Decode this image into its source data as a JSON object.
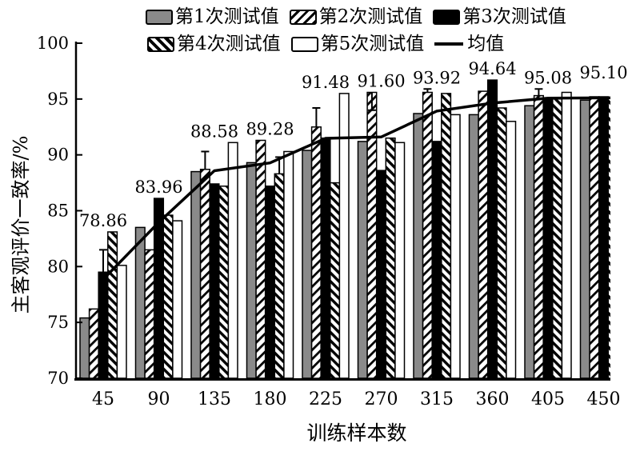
{
  "figure": {
    "legend": {
      "items": [
        {
          "label": "第1次测试值",
          "swatch": "gray"
        },
        {
          "label": "第2次测试值",
          "swatch": "hatch-fwd"
        },
        {
          "label": "第3次测试值",
          "swatch": "black"
        },
        {
          "label": "第4次测试值",
          "swatch": "hatch-bwd"
        },
        {
          "label": "第5次测试值",
          "swatch": "white"
        },
        {
          "label": "均值",
          "swatch": "line"
        }
      ]
    },
    "axes": {
      "x_label": "训练样本数",
      "y_label": "主客观评价一致率/%"
    }
  },
  "chart_data": {
    "type": "bar",
    "title": "",
    "xlabel": "训练样本数",
    "ylabel": "主客观评价一致率/%",
    "ylim": [
      70,
      100
    ],
    "yticks": [
      70,
      75,
      80,
      85,
      90,
      95,
      100
    ],
    "grid": false,
    "legend_position": "top",
    "categories": [
      45,
      90,
      135,
      180,
      225,
      270,
      315,
      360,
      405,
      450
    ],
    "series": [
      {
        "name": "第1次测试值",
        "style": "solid-gray",
        "values": [
          75.4,
          83.5,
          88.5,
          89.3,
          90.4,
          91.2,
          93.7,
          93.6,
          94.4,
          94.9
        ]
      },
      {
        "name": "第2次测试值",
        "style": "hatch-forward",
        "values": [
          76.2,
          81.5,
          88.7,
          91.3,
          92.5,
          95.6,
          95.6,
          95.7,
          95.3,
          95.2
        ]
      },
      {
        "name": "第3次测试值",
        "style": "solid-black",
        "values": [
          79.5,
          86.1,
          87.4,
          87.2,
          91.5,
          88.6,
          91.2,
          96.7,
          95.1,
          95.2
        ]
      },
      {
        "name": "第4次测试值",
        "style": "hatch-backward",
        "values": [
          83.1,
          84.6,
          87.2,
          88.3,
          87.5,
          91.5,
          95.5,
          94.2,
          95.0,
          95.1
        ]
      },
      {
        "name": "第5次测试值",
        "style": "white-outline",
        "values": [
          80.1,
          84.1,
          91.1,
          90.3,
          95.5,
          91.1,
          93.6,
          93.0,
          95.6,
          95.1
        ]
      }
    ],
    "mean_line": {
      "name": "均值",
      "values": [
        78.86,
        83.96,
        88.58,
        89.28,
        91.48,
        91.6,
        93.92,
        94.64,
        95.08,
        95.1
      ]
    },
    "value_labels": [
      "78.86",
      "83.96",
      "88.58",
      "89.28",
      "91.48",
      "91.60",
      "93.92",
      "94.64",
      "95.08",
      "95.10"
    ],
    "error_bars": [
      {
        "group_index": 0,
        "series_index": 2,
        "whisker_value": 81.5
      },
      {
        "group_index": 2,
        "series_index": 1,
        "whisker_value": 90.3
      },
      {
        "group_index": 3,
        "series_index": 3,
        "whisker_value": 89.8
      },
      {
        "group_index": 4,
        "series_index": 1,
        "whisker_value": 94.2
      },
      {
        "group_index": 5,
        "series_index": 1,
        "whisker_value": 94.0
      },
      {
        "group_index": 6,
        "series_index": 1,
        "whisker_value": 95.9
      },
      {
        "group_index": 8,
        "series_index": 1,
        "whisker_value": 95.9
      }
    ],
    "colors": {
      "series1_fill": "#8a8a8a",
      "series3_fill": "#000000",
      "bar_outline": "#000000",
      "mean_line": "#000000",
      "background": "#ffffff"
    }
  }
}
